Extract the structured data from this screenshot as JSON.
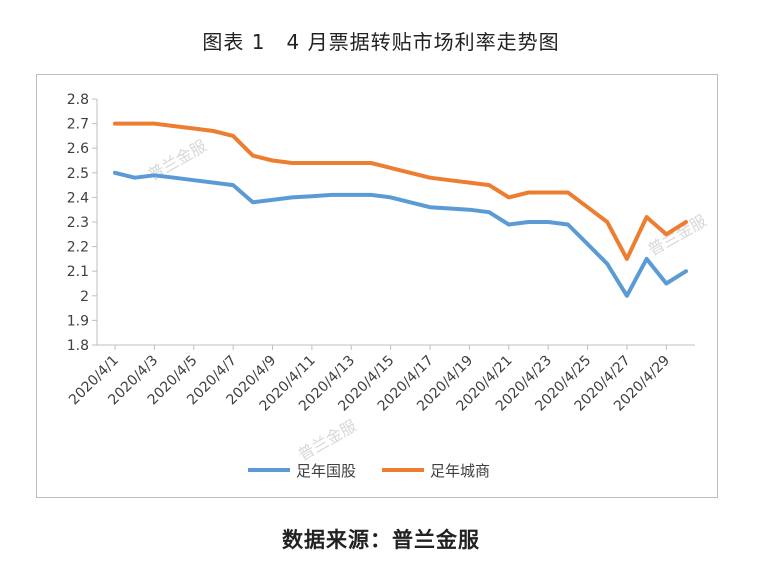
{
  "header": {
    "title": "图表 1　4 月票据转贴市场利率走势图"
  },
  "footer": {
    "source": "数据来源：普兰金服"
  },
  "watermark": {
    "text": "普兰金服"
  },
  "chart_data": {
    "type": "line",
    "title": "图表 1　4 月票据转贴市场利率走势图",
    "xlabel": "",
    "ylabel": "",
    "ylim": [
      1.8,
      2.8
    ],
    "yticks": [
      1.8,
      1.9,
      2,
      2.1,
      2.2,
      2.3,
      2.4,
      2.5,
      2.6,
      2.7,
      2.8
    ],
    "grid": false,
    "legend_position": "bottom",
    "x": [
      "2020/4/1",
      "2020/4/2",
      "2020/4/3",
      "2020/4/4",
      "2020/4/5",
      "2020/4/6",
      "2020/4/7",
      "2020/4/8",
      "2020/4/9",
      "2020/4/10",
      "2020/4/11",
      "2020/4/12",
      "2020/4/13",
      "2020/4/14",
      "2020/4/15",
      "2020/4/16",
      "2020/4/17",
      "2020/4/18",
      "2020/4/19",
      "2020/4/20",
      "2020/4/21",
      "2020/4/22",
      "2020/4/23",
      "2020/4/24",
      "2020/4/25",
      "2020/4/26",
      "2020/4/27",
      "2020/4/28",
      "2020/4/29",
      "2020/4/30"
    ],
    "xtick_labels": [
      "2020/4/1",
      "2020/4/3",
      "2020/4/5",
      "2020/4/7",
      "2020/4/9",
      "2020/4/11",
      "2020/4/13",
      "2020/4/15",
      "2020/4/17",
      "2020/4/19",
      "2020/4/21",
      "2020/4/23",
      "2020/4/25",
      "2020/4/27",
      "2020/4/29"
    ],
    "series": [
      {
        "name": "足年国股",
        "color": "#5b9bd5",
        "values": [
          2.5,
          2.48,
          2.49,
          2.48,
          2.47,
          2.46,
          2.45,
          2.38,
          2.39,
          2.4,
          2.405,
          2.41,
          2.41,
          2.41,
          2.4,
          2.38,
          2.36,
          2.355,
          2.35,
          2.34,
          2.29,
          2.3,
          2.3,
          2.29,
          2.21,
          2.13,
          2.0,
          2.15,
          2.05,
          2.1
        ]
      },
      {
        "name": "足年城商",
        "color": "#ed7d31",
        "values": [
          2.7,
          2.7,
          2.7,
          2.69,
          2.68,
          2.67,
          2.65,
          2.57,
          2.55,
          2.54,
          2.54,
          2.54,
          2.54,
          2.54,
          2.52,
          2.5,
          2.48,
          2.47,
          2.46,
          2.45,
          2.4,
          2.42,
          2.42,
          2.42,
          2.36,
          2.3,
          2.15,
          2.32,
          2.25,
          2.3
        ]
      }
    ]
  }
}
